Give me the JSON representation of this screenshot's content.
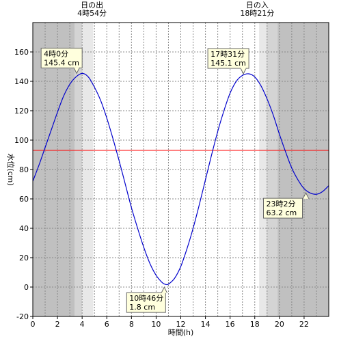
{
  "chart_data": {
    "type": "line",
    "xlabel": "時間(h)",
    "ylabel": "水位(cm)",
    "xlim": [
      0,
      24
    ],
    "ylim": [
      -20,
      180
    ],
    "x_ticks": [
      0,
      2,
      4,
      6,
      8,
      10,
      12,
      14,
      16,
      18,
      20,
      22
    ],
    "y_ticks": [
      -20,
      0,
      20,
      40,
      60,
      80,
      100,
      120,
      140,
      160
    ],
    "grid": true,
    "reference_line": {
      "y": 93,
      "color": "#ff0000"
    },
    "series": [
      {
        "color": "#0000cc",
        "x": [
          0,
          0.5,
          1,
          1.5,
          2,
          2.5,
          3,
          3.5,
          4,
          4.5,
          5,
          5.5,
          6,
          6.5,
          7,
          7.5,
          8,
          8.5,
          9,
          9.5,
          10,
          10.5,
          10.77,
          11,
          11.5,
          12,
          12.5,
          13,
          13.5,
          14,
          14.5,
          15,
          15.5,
          16,
          16.5,
          17,
          17.52,
          18,
          18.5,
          19,
          19.5,
          20,
          20.5,
          21,
          21.5,
          22,
          22.5,
          23.03,
          23.5,
          24
        ],
        "y": [
          72,
          83,
          95,
          107,
          119,
          130,
          138,
          143,
          145.4,
          143,
          136,
          127,
          115,
          101,
          86,
          70,
          54,
          40,
          27,
          16,
          8,
          3,
          1.8,
          2,
          6,
          14,
          26,
          40,
          56,
          73,
          90,
          106,
          120,
          132,
          140,
          144,
          145.1,
          143,
          137,
          128,
          117,
          104,
          92,
          81,
          73,
          67,
          64,
          63.2,
          65,
          69
        ]
      }
    ],
    "daylight": {
      "sunrise": {
        "hour": 4.9,
        "label_title": "日の出",
        "label_time": "4時54分"
      },
      "sunset": {
        "hour": 18.35,
        "label_title": "日の入",
        "label_time": "18時21分"
      },
      "night_color": "#c0c0c0",
      "twilight_colors": [
        "#d4d4d4",
        "#e8e8e8"
      ]
    },
    "annotations": [
      {
        "x": 4.0,
        "y": 145.4,
        "time": "4時0分",
        "value": "145.4 cm",
        "type": "high"
      },
      {
        "x": 10.77,
        "y": 1.8,
        "time": "10時46分",
        "value": "1.8 cm",
        "type": "low"
      },
      {
        "x": 17.52,
        "y": 145.1,
        "time": "17時31分",
        "value": "145.1 cm",
        "type": "high"
      },
      {
        "x": 23.03,
        "y": 63.2,
        "time": "23時2分",
        "value": "63.2 cm",
        "type": "low"
      }
    ]
  }
}
